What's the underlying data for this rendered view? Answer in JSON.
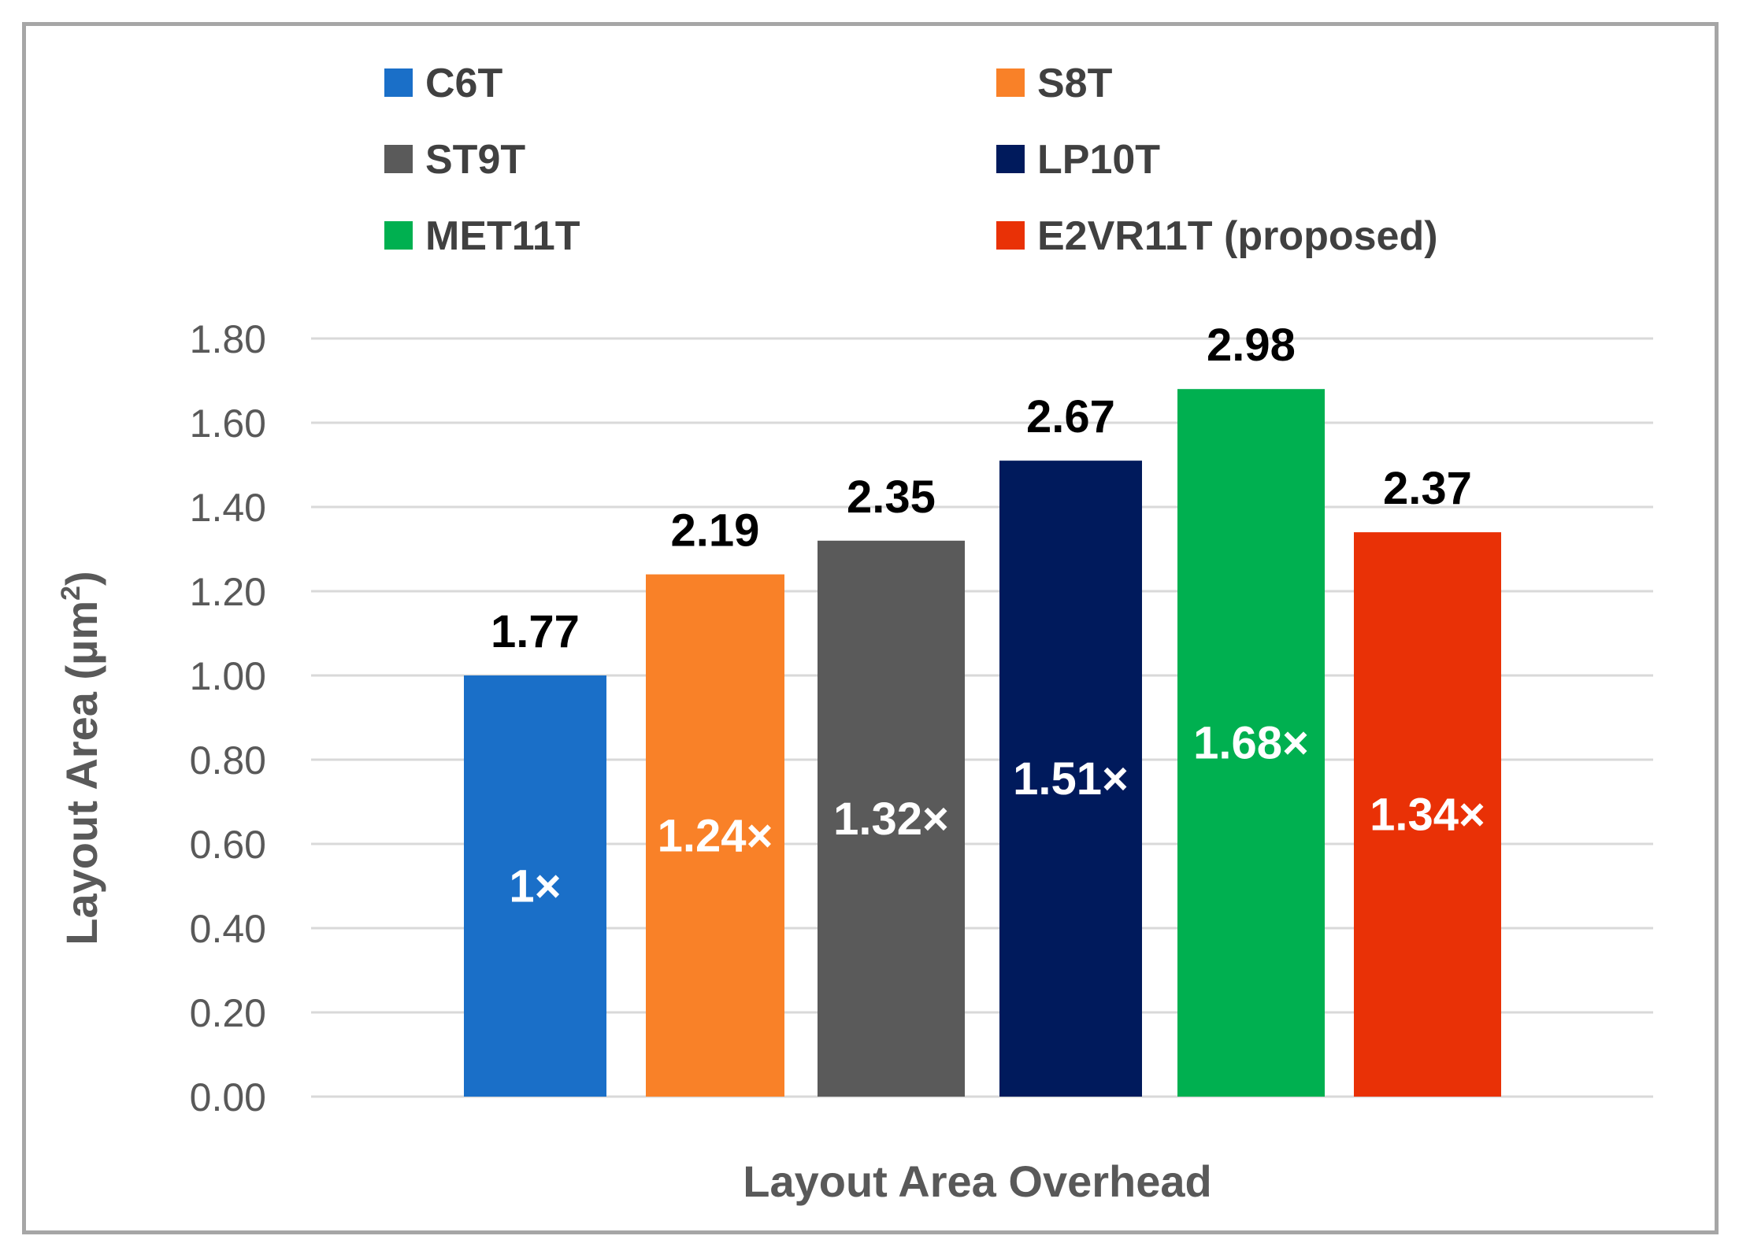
{
  "chart_data": {
    "type": "bar",
    "title": "",
    "xlabel": "Layout Area Overhead",
    "ylabel": "Layout Area (µm",
    "ylabel_superscript": "2",
    "ylabel_close": ")",
    "ylim": [
      0,
      1.8
    ],
    "yticks": [
      "0.00",
      "0.20",
      "0.40",
      "0.60",
      "0.80",
      "1.00",
      "1.20",
      "1.40",
      "1.60",
      "1.80"
    ],
    "grid": true,
    "legend_position": "top",
    "series": [
      {
        "name": "C6T",
        "value": 1.0,
        "top_label": "1.77",
        "inner_label": "1×",
        "color": "#1a6fc8",
        "inner_color": "#ffffff"
      },
      {
        "name": "S8T",
        "value": 1.24,
        "top_label": "2.19",
        "inner_label": "1.24×",
        "color": "#f98128",
        "inner_color": "#ffffff"
      },
      {
        "name": "ST9T",
        "value": 1.32,
        "top_label": "2.35",
        "inner_label": "1.32×",
        "color": "#5a5a5a",
        "inner_color": "#ffffff"
      },
      {
        "name": "LP10T",
        "value": 1.51,
        "top_label": "2.67",
        "inner_label": "1.51×",
        "color": "#001a5c",
        "inner_color": "#ffffff"
      },
      {
        "name": "MET11T",
        "value": 1.68,
        "top_label": "2.98",
        "inner_label": "1.68×",
        "color": "#00b050",
        "inner_color": "#ffffff"
      },
      {
        "name": "E2VR11T (proposed)",
        "value": 1.34,
        "top_label": "2.37",
        "inner_label": "1.34×",
        "color": "#e93106",
        "inner_color": "#ffffff"
      }
    ]
  }
}
